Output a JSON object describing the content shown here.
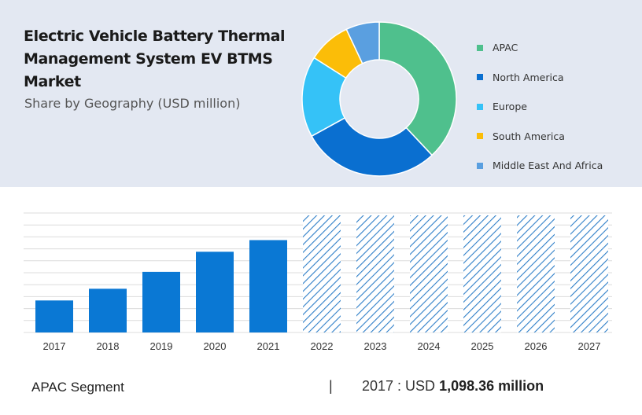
{
  "header": {
    "title": "Electric Vehicle Battery Thermal Management System EV BTMS Market",
    "subtitle": "Share by Geography (USD million)"
  },
  "chart_data": [
    {
      "type": "pie",
      "style": "donut",
      "categories": [
        "APAC",
        "North America",
        "Europe",
        "South America",
        "Middle East And Africa"
      ],
      "values": [
        38,
        29,
        17,
        9,
        7
      ],
      "colors": [
        "#4fc08d",
        "#0a6fd0",
        "#35c2f7",
        "#fbbd08",
        "#5a9fe0"
      ],
      "legend_position": "right"
    },
    {
      "type": "bar",
      "categories": [
        "2017",
        "2018",
        "2019",
        "2020",
        "2021",
        "2022",
        "2023",
        "2024",
        "2025",
        "2026",
        "2027"
      ],
      "values": [
        1098.36,
        1500,
        2080,
        2770,
        3170,
        null,
        null,
        null,
        null,
        null,
        null
      ],
      "forecast_categories": [
        "2022",
        "2023",
        "2024",
        "2025",
        "2026",
        "2027"
      ],
      "bar_color": "#0a78d4",
      "forecast_pattern": "diagonal-hatch",
      "forecast_color": "#2f7fc8",
      "grid": true
    }
  ],
  "footer": {
    "segment": "APAC Segment",
    "separator": "|",
    "year_label": "2017 : USD",
    "value_label": "1,098.36 million"
  }
}
